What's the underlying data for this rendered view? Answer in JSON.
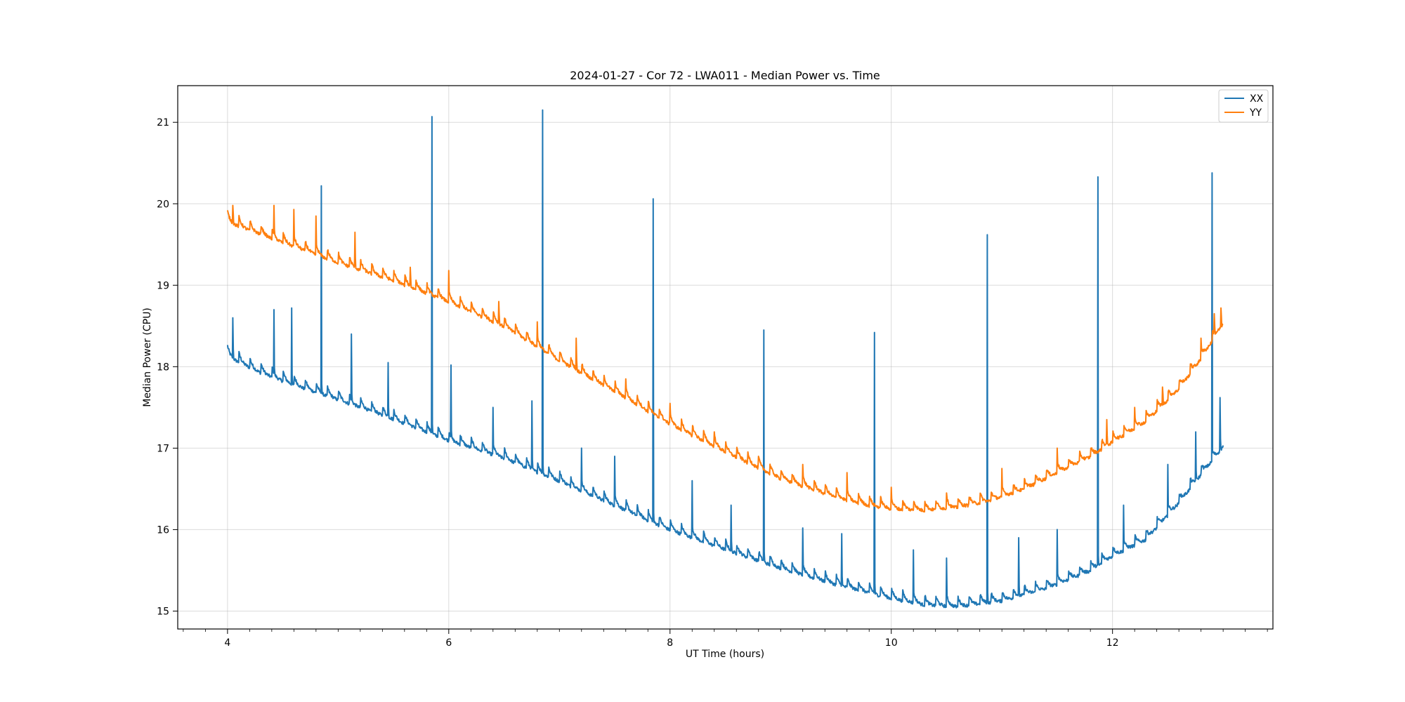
{
  "chart_data": {
    "type": "line",
    "title": "2024-01-27 - Cor 72 - LWA011 - Median Power vs. Time",
    "xlabel": "UT Time (hours)",
    "ylabel": "Median Power (CPU)",
    "xlim": [
      3.55,
      13.45
    ],
    "ylim": [
      14.78,
      21.45
    ],
    "xticks": [
      4,
      6,
      8,
      10,
      12
    ],
    "xtick_labels": [
      "4",
      "6",
      "8",
      "10",
      "12"
    ],
    "yticks": [
      15,
      16,
      17,
      18,
      19,
      20,
      21
    ],
    "ytick_labels": [
      "15",
      "16",
      "17",
      "18",
      "19",
      "20",
      "21"
    ],
    "grid": true,
    "legend_position": "top-right",
    "series": [
      {
        "name": "XX",
        "color": "#1f77b4",
        "baseline_x": [
          4.0,
          4.3,
          4.6,
          5.0,
          5.5,
          6.0,
          6.5,
          7.0,
          7.5,
          8.0,
          8.5,
          9.0,
          9.5,
          10.0,
          10.3,
          10.6,
          11.0,
          11.4,
          11.8,
          12.0,
          12.3,
          12.6,
          12.8,
          12.95,
          13.0
        ],
        "baseline_y": [
          18.15,
          17.95,
          17.8,
          17.62,
          17.38,
          17.12,
          16.9,
          16.62,
          16.32,
          16.02,
          15.78,
          15.55,
          15.35,
          15.18,
          15.1,
          15.08,
          15.15,
          15.3,
          15.52,
          15.7,
          15.9,
          16.35,
          16.7,
          16.95,
          17.05
        ],
        "spike_x": [
          4.05,
          4.42,
          4.58,
          4.85,
          5.12,
          5.45,
          5.85,
          6.02,
          6.4,
          6.75,
          6.85,
          7.2,
          7.5,
          7.85,
          8.2,
          8.55,
          8.85,
          9.2,
          9.55,
          9.85,
          10.2,
          10.5,
          10.87,
          11.15,
          11.5,
          11.87,
          12.1,
          12.5,
          12.75,
          12.9,
          12.97
        ],
        "spike_y": [
          18.6,
          18.7,
          18.72,
          20.22,
          18.4,
          18.05,
          21.07,
          18.02,
          17.5,
          17.58,
          21.15,
          17.0,
          16.9,
          20.06,
          16.6,
          16.3,
          18.45,
          16.02,
          15.95,
          18.42,
          15.75,
          15.65,
          19.62,
          15.9,
          16.0,
          20.33,
          16.3,
          16.8,
          17.2,
          20.38,
          17.62
        ]
      },
      {
        "name": "YY",
        "color": "#ff7f0e",
        "baseline_x": [
          4.0,
          4.3,
          4.6,
          5.0,
          5.5,
          6.0,
          6.5,
          7.0,
          7.5,
          8.0,
          8.5,
          9.0,
          9.5,
          9.8,
          10.0,
          10.3,
          10.6,
          10.9,
          11.2,
          11.5,
          11.8,
          12.0,
          12.3,
          12.6,
          12.8,
          12.95,
          13.0
        ],
        "baseline_y": [
          19.8,
          19.65,
          19.5,
          19.3,
          19.08,
          18.82,
          18.52,
          18.1,
          17.72,
          17.32,
          16.98,
          16.65,
          16.42,
          16.32,
          16.28,
          16.26,
          16.3,
          16.38,
          16.52,
          16.72,
          16.92,
          17.1,
          17.35,
          17.75,
          18.12,
          18.45,
          18.55
        ],
        "spike_x": [
          4.05,
          4.42,
          4.6,
          4.8,
          5.15,
          5.65,
          6.0,
          6.45,
          6.8,
          7.15,
          7.6,
          8.0,
          8.4,
          8.8,
          9.2,
          9.6,
          10.0,
          10.5,
          11.0,
          11.5,
          11.95,
          12.2,
          12.45,
          12.8,
          12.92,
          12.98
        ],
        "spike_y": [
          19.98,
          19.98,
          19.93,
          19.85,
          19.65,
          19.22,
          19.18,
          18.8,
          18.55,
          18.35,
          17.85,
          17.55,
          17.2,
          16.9,
          16.8,
          16.7,
          16.52,
          16.45,
          16.75,
          17.0,
          17.35,
          17.5,
          17.75,
          18.35,
          18.65,
          18.72
        ]
      }
    ]
  }
}
